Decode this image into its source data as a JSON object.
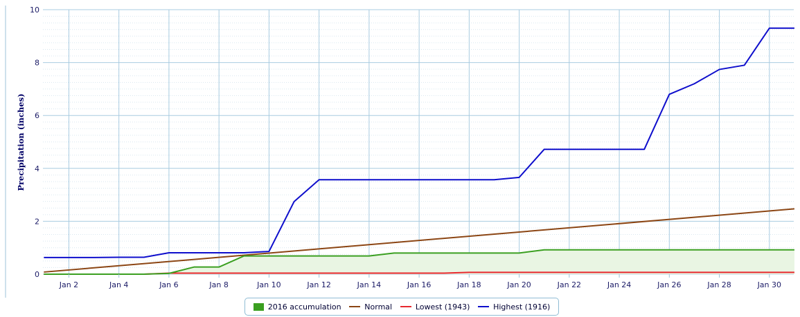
{
  "chart_data": {
    "type": "line",
    "xlabel": "",
    "ylabel": "Precipitation (inches)",
    "ylim": [
      0,
      10
    ],
    "xlim": [
      1,
      31
    ],
    "x_ticks": [
      {
        "day": 2,
        "label": "Jan 2"
      },
      {
        "day": 4,
        "label": "Jan 4"
      },
      {
        "day": 6,
        "label": "Jan 6"
      },
      {
        "day": 8,
        "label": "Jan 8"
      },
      {
        "day": 10,
        "label": "Jan 10"
      },
      {
        "day": 12,
        "label": "Jan 12"
      },
      {
        "day": 14,
        "label": "Jan 14"
      },
      {
        "day": 16,
        "label": "Jan 16"
      },
      {
        "day": 18,
        "label": "Jan 18"
      },
      {
        "day": 20,
        "label": "Jan 20"
      },
      {
        "day": 22,
        "label": "Jan 22"
      },
      {
        "day": 24,
        "label": "Jan 24"
      },
      {
        "day": 26,
        "label": "Jan 26"
      },
      {
        "day": 28,
        "label": "Jan 28"
      },
      {
        "day": 30,
        "label": "Jan 30"
      }
    ],
    "y_ticks": [
      "0",
      "2",
      "4",
      "6",
      "8",
      "10"
    ],
    "grid": true,
    "legend_position": "bottom-center",
    "series": [
      {
        "name": "2016 accumulation",
        "style": "area",
        "color": "#3a9f20",
        "fill": "#e9f5e3",
        "x": [
          1,
          2,
          3,
          4,
          5,
          6,
          7,
          8,
          9,
          10,
          11,
          12,
          13,
          14,
          15,
          16,
          17,
          18,
          19,
          20,
          21,
          22,
          23,
          24,
          25,
          26,
          27,
          28,
          29,
          30,
          31
        ],
        "values": [
          0,
          0,
          0,
          0,
          0,
          0.03,
          0.27,
          0.27,
          0.69,
          0.69,
          0.69,
          0.69,
          0.69,
          0.69,
          0.8,
          0.8,
          0.8,
          0.8,
          0.8,
          0.8,
          0.92,
          0.92,
          0.92,
          0.92,
          0.92,
          0.92,
          0.92,
          0.92,
          0.92,
          0.92,
          0.92
        ]
      },
      {
        "name": "Normal",
        "style": "line",
        "color": "#8b4513",
        "x": [
          1,
          31
        ],
        "values": [
          0.08,
          2.47
        ]
      },
      {
        "name": "Lowest (1943)",
        "style": "line",
        "color": "#e8282e",
        "x": [
          1,
          2,
          3,
          4,
          5,
          6,
          7,
          8,
          9,
          10,
          11,
          12,
          13,
          14,
          15,
          16,
          17,
          18,
          19,
          20,
          21,
          22,
          23,
          24,
          25,
          26,
          27,
          28,
          29,
          30,
          31
        ],
        "values": [
          0,
          0,
          0,
          0,
          0,
          0.04,
          0.04,
          0.04,
          0.04,
          0.04,
          0.04,
          0.04,
          0.04,
          0.04,
          0.04,
          0.04,
          0.04,
          0.07,
          0.07,
          0.07,
          0.07,
          0.07,
          0.07,
          0.07,
          0.07,
          0.07,
          0.07,
          0.07,
          0.07,
          0.07,
          0.07
        ]
      },
      {
        "name": "Highest (1916)",
        "style": "line",
        "color": "#0e0ecc",
        "x": [
          1,
          2,
          3,
          4,
          5,
          6,
          7,
          8,
          9,
          10,
          11,
          12,
          13,
          14,
          15,
          16,
          17,
          18,
          19,
          20,
          21,
          22,
          23,
          24,
          25,
          26,
          27,
          28,
          29,
          30,
          31
        ],
        "values": [
          0.63,
          0.63,
          0.63,
          0.64,
          0.64,
          0.81,
          0.81,
          0.81,
          0.81,
          0.86,
          2.74,
          3.57,
          3.57,
          3.57,
          3.57,
          3.57,
          3.57,
          3.57,
          3.57,
          3.66,
          4.72,
          4.72,
          4.72,
          4.72,
          4.72,
          6.8,
          7.2,
          7.74,
          7.9,
          9.3,
          9.3
        ]
      }
    ]
  }
}
